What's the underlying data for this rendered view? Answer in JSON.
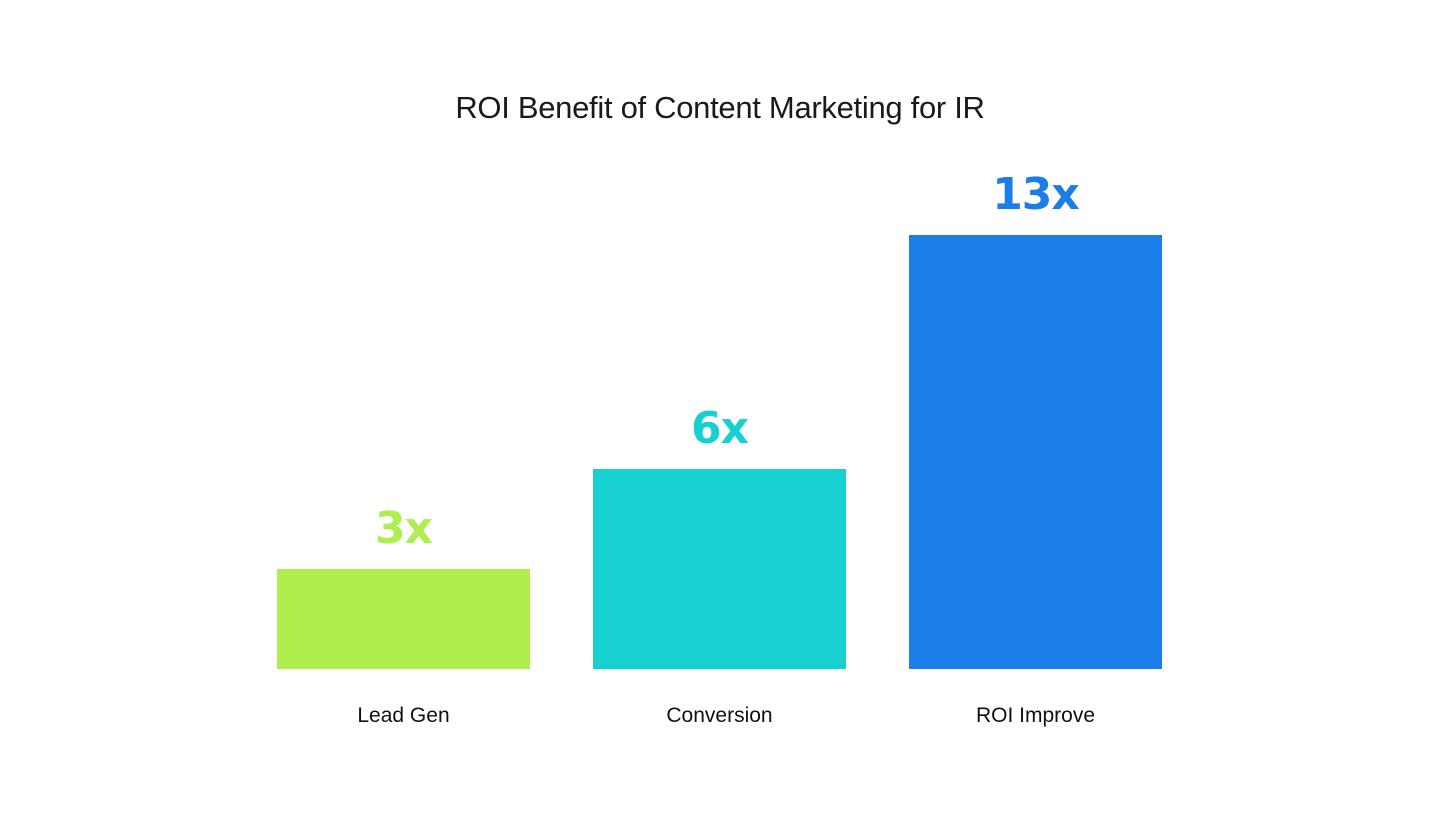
{
  "chart_data": {
    "type": "bar",
    "title": "ROI Benefit of Content Marketing for IR",
    "categories": [
      "Lead Gen",
      "Conversion",
      "ROI Improve"
    ],
    "values": [
      3,
      6,
      13
    ],
    "value_labels": [
      "3x",
      "6x",
      "13x"
    ],
    "colors": [
      "#aeee4d",
      "#17d1d1",
      "#1a7de8"
    ],
    "xlabel": "",
    "ylabel": "",
    "ylim": [
      0,
      13
    ],
    "grid": false,
    "legend": "none",
    "axes_visible": false
  }
}
